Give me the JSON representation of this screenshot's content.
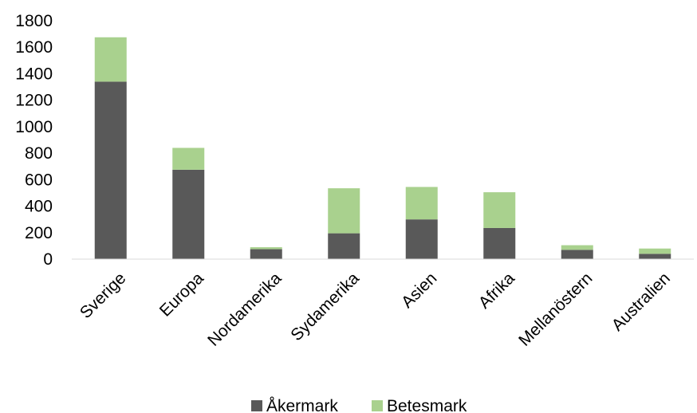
{
  "chart_data": {
    "type": "bar",
    "stacked": true,
    "categories": [
      "Sverige",
      "Europa",
      "Nordamerika",
      "Sydamerika",
      "Asien",
      "Afrika",
      "Mellanöstern",
      "Australien"
    ],
    "series": [
      {
        "name": "Åkermark",
        "values": [
          1340,
          675,
          75,
          195,
          300,
          235,
          70,
          40
        ],
        "color": "#595959"
      },
      {
        "name": "Betesmark",
        "values": [
          335,
          165,
          15,
          340,
          245,
          270,
          35,
          40
        ],
        "color": "#a9d18e"
      }
    ],
    "ylim": [
      0,
      1800
    ],
    "yticks": [
      0,
      200,
      400,
      600,
      800,
      1000,
      1200,
      1400,
      1600,
      1800
    ],
    "grid": false,
    "legend": "bottom",
    "xlabel": "",
    "ylabel": ""
  }
}
